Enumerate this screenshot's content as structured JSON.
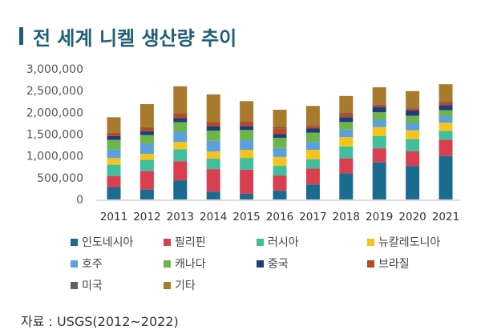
{
  "title": "전 세계 니켈 생산량 추이",
  "source": "자료 : USGS(2012~2022)",
  "chart_data": {
    "type": "bar",
    "stacked": true,
    "title": "전 세계 니켈 생산량 추이",
    "xlabel": "",
    "ylabel": "",
    "ylim": [
      0,
      3000000
    ],
    "yticks": [
      0,
      500000,
      1000000,
      1500000,
      2000000,
      2500000,
      3000000
    ],
    "ytick_labels": [
      "0",
      "500,000",
      "1,000,000",
      "1,500,000",
      "2,000,000",
      "2,500,000",
      "3,000,000"
    ],
    "categories": [
      "2011",
      "2012",
      "2013",
      "2014",
      "2015",
      "2016",
      "2017",
      "2018",
      "2019",
      "2020",
      "2021"
    ],
    "legend_position": "bottom",
    "grid": false,
    "series": [
      {
        "name": "인도네시아",
        "color": "#1b6a8f",
        "values": [
          276000,
          228000,
          440000,
          177000,
          130000,
          200000,
          345000,
          600000,
          853000,
          771000,
          1000000
        ]
      },
      {
        "name": "필리핀",
        "color": "#d9404f",
        "values": [
          264000,
          424000,
          440000,
          520000,
          555000,
          350000,
          366000,
          345000,
          323000,
          334000,
          370000
        ]
      },
      {
        "name": "러시아",
        "color": "#3fbf9b",
        "values": [
          258000,
          258000,
          275000,
          240000,
          270000,
          222000,
          214000,
          272000,
          279000,
          283000,
          205000
        ]
      },
      {
        "name": "뉴칼레도니아",
        "color": "#f6c31c",
        "values": [
          153000,
          138000,
          165000,
          165000,
          186000,
          205000,
          215000,
          216000,
          208000,
          200000,
          190000
        ]
      },
      {
        "name": "호주",
        "color": "#5aa0dc",
        "values": [
          197000,
          230000,
          235000,
          245000,
          220000,
          204000,
          179000,
          170000,
          159000,
          169000,
          150000
        ]
      },
      {
        "name": "캐나다",
        "color": "#6db54a",
        "values": [
          220000,
          200000,
          220000,
          235000,
          235000,
          235000,
          214000,
          176000,
          181000,
          167000,
          134000
        ]
      },
      {
        "name": "중국",
        "color": "#1d3f78",
        "values": [
          92000,
          92000,
          95000,
          100000,
          92000,
          90000,
          96000,
          110000,
          120000,
          120000,
          120000
        ]
      },
      {
        "name": "브라질",
        "color": "#b5492a",
        "values": [
          74000,
          90000,
          110000,
          102000,
          110000,
          130000,
          60000,
          80000,
          50000,
          50000,
          70000
        ]
      },
      {
        "name": "미국",
        "color": "#5f5f5f",
        "values": [
          0,
          0,
          0,
          0,
          0,
          20000,
          20000,
          18000,
          14000,
          16000,
          18000
        ]
      },
      {
        "name": "기타",
        "color": "#a77b2b",
        "values": [
          355000,
          530000,
          620000,
          630000,
          460000,
          405000,
          440000,
          390000,
          390000,
          380000,
          390000
        ]
      }
    ]
  }
}
